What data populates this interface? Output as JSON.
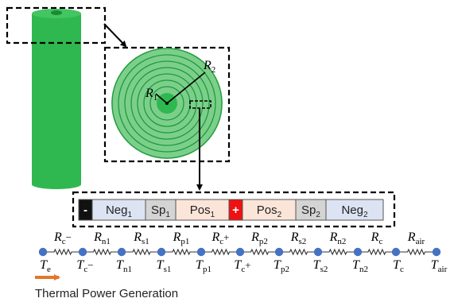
{
  "spiral": {
    "r1": "R",
    "r1_sub": "1",
    "r2": "R",
    "r2_sub": "2"
  },
  "layers": [
    {
      "main": "-",
      "sub": "",
      "fill": "#111111",
      "text_color": "#ffffff",
      "kind": "terminal"
    },
    {
      "main": "Neg",
      "sub": "1",
      "fill": "#dce3f2",
      "text_color": "#222222",
      "kind": "layer"
    },
    {
      "main": "Sp",
      "sub": "1",
      "fill": "#d4d4d4",
      "text_color": "#222222",
      "kind": "layer"
    },
    {
      "main": "Pos",
      "sub": "1",
      "fill": "#fbe5d8",
      "text_color": "#222222",
      "kind": "layer"
    },
    {
      "main": "+",
      "sub": "",
      "fill": "#ee1111",
      "text_color": "#ffffff",
      "kind": "terminal"
    },
    {
      "main": "Pos",
      "sub": "2",
      "fill": "#fbe5d8",
      "text_color": "#222222",
      "kind": "layer"
    },
    {
      "main": "Sp",
      "sub": "2",
      "fill": "#d4d4d4",
      "text_color": "#222222",
      "kind": "layer"
    },
    {
      "main": "Neg",
      "sub": "2",
      "fill": "#dce3f2",
      "text_color": "#222222",
      "kind": "layer"
    }
  ],
  "resistors": [
    {
      "main": "R",
      "sub": "c",
      "suffix": "−"
    },
    {
      "main": "R",
      "sub": "n1",
      "suffix": ""
    },
    {
      "main": "R",
      "sub": "s1",
      "suffix": ""
    },
    {
      "main": "R",
      "sub": "p1",
      "suffix": ""
    },
    {
      "main": "R",
      "sub": "c",
      "suffix": "+"
    },
    {
      "main": "R",
      "sub": "p2",
      "suffix": ""
    },
    {
      "main": "R",
      "sub": "s2",
      "suffix": ""
    },
    {
      "main": "R",
      "sub": "n2",
      "suffix": ""
    },
    {
      "main": "R",
      "sub": "c",
      "suffix": ""
    },
    {
      "main": "R",
      "sub": "air",
      "suffix": ""
    }
  ],
  "nodes": [
    {
      "main": "T",
      "sub": "e",
      "suffix": ""
    },
    {
      "main": "T",
      "sub": "c",
      "suffix": "−"
    },
    {
      "main": "T",
      "sub": "n1",
      "suffix": ""
    },
    {
      "main": "T",
      "sub": "s1",
      "suffix": ""
    },
    {
      "main": "T",
      "sub": "p1",
      "suffix": ""
    },
    {
      "main": "T",
      "sub": "c",
      "suffix": "+"
    },
    {
      "main": "T",
      "sub": "p2",
      "suffix": ""
    },
    {
      "main": "T",
      "sub": "s2",
      "suffix": ""
    },
    {
      "main": "T",
      "sub": "n2",
      "suffix": ""
    },
    {
      "main": "T",
      "sub": "c",
      "suffix": ""
    },
    {
      "main": "T",
      "sub": "air",
      "suffix": ""
    }
  ],
  "caption": "Thermal Power Generation",
  "colors": {
    "cell_green": "#2fb84f",
    "cell_green_dark": "#1f9a3c",
    "spiral_light": "#7ccf8a",
    "node_blue": "#4472c4",
    "arrow_orange": "#e5762a"
  }
}
